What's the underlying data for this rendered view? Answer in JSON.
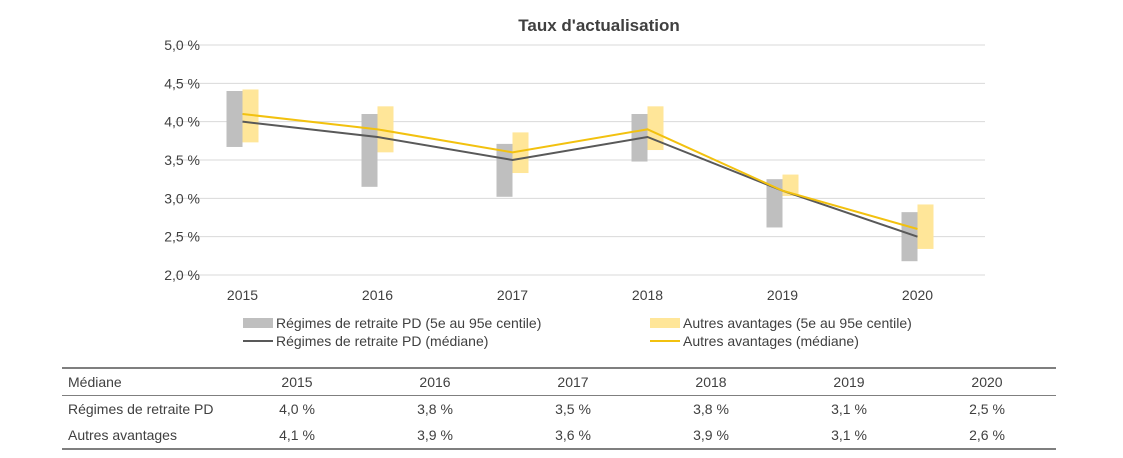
{
  "chart_data": {
    "type": "line",
    "title": "Taux d'actualisation",
    "categories": [
      "2015",
      "2016",
      "2017",
      "2018",
      "2019",
      "2020"
    ],
    "ylim": [
      2.0,
      5.0
    ],
    "yticks": [
      5.0,
      4.5,
      4.0,
      3.5,
      3.0,
      2.5,
      2.0
    ],
    "ytick_labels": [
      "5,0 %",
      "4,5 %",
      "4,0 %",
      "3,5 %",
      "3,0 %",
      "2,5 %",
      "2,0 %"
    ],
    "grid": true,
    "legend_position": "bottom",
    "ranges": [
      {
        "name": "Régimes de retraite PD (5e au 95e centile)",
        "color": "#bfbfbf",
        "low": [
          3.67,
          3.15,
          3.02,
          3.48,
          2.62,
          2.18
        ],
        "high": [
          4.4,
          4.1,
          3.71,
          4.1,
          3.25,
          2.82
        ]
      },
      {
        "name": "Autres avantages (5e au 95e centile)",
        "color": "#ffe699",
        "low": [
          3.73,
          3.6,
          3.33,
          3.63,
          3.03,
          2.34
        ],
        "high": [
          4.42,
          4.2,
          3.86,
          4.2,
          3.31,
          2.92
        ]
      }
    ],
    "series": [
      {
        "name": "Régimes de retraite PD (médiane)",
        "color": "#595959",
        "values": [
          4.0,
          3.8,
          3.5,
          3.8,
          3.1,
          2.5
        ]
      },
      {
        "name": "Autres avantages (médiane)",
        "color": "#f2c10f",
        "values": [
          4.1,
          3.9,
          3.6,
          3.9,
          3.1,
          2.6
        ]
      }
    ]
  },
  "table": {
    "header_label": "Médiane",
    "years": [
      "2015",
      "2016",
      "2017",
      "2018",
      "2019",
      "2020"
    ],
    "rows": [
      {
        "label": "Régimes de retraite PD",
        "values": [
          "4,0 %",
          "3,8 %",
          "3,5 %",
          "3,8 %",
          "3,1 %",
          "2,5 %"
        ]
      },
      {
        "label": "Autres avantages",
        "values": [
          "4,1 %",
          "3,9 %",
          "3,6 %",
          "3,9 %",
          "3,1 %",
          "2,6 %"
        ]
      }
    ]
  }
}
